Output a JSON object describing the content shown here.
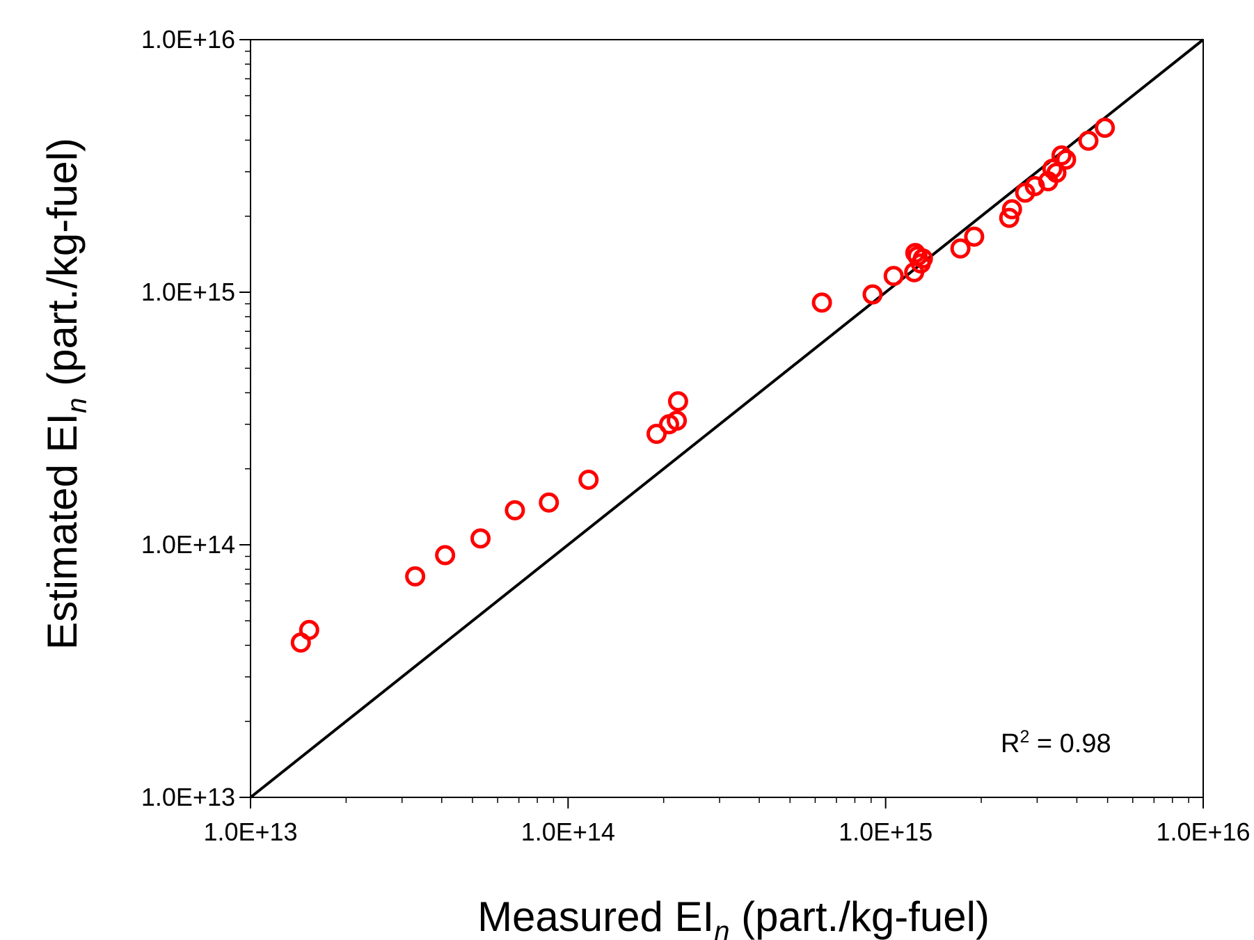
{
  "chart_data": {
    "type": "scatter",
    "xlabel": {
      "prefix": "Measured EI",
      "subscript": "n",
      "suffix": " (part./kg-fuel)"
    },
    "ylabel": {
      "prefix": "Estimated EI",
      "subscript": "n",
      "suffix": " (part./kg-fuel)"
    },
    "x_scale": "log",
    "y_scale": "log",
    "xlim": [
      10000000000000.0,
      1e+16
    ],
    "ylim": [
      10000000000000.0,
      1e+16
    ],
    "x_ticks": [
      10000000000000.0,
      100000000000000.0,
      1000000000000000.0,
      1e+16
    ],
    "y_ticks": [
      10000000000000.0,
      100000000000000.0,
      1000000000000000.0,
      1e+16
    ],
    "x_tick_labels": [
      "1.0E+13",
      "1.0E+14",
      "1.0E+15",
      "1.0E+16"
    ],
    "y_tick_labels": [
      "1.0E+13",
      "1.0E+14",
      "1.0E+15",
      "1.0E+16"
    ],
    "grid": false,
    "legend": "none",
    "marker_color": "#ff0000",
    "line_color": "#000000",
    "reference_line": {
      "type": "1:1",
      "from": [
        10000000000000.0,
        10000000000000.0
      ],
      "to": [
        1e+16,
        1e+16
      ]
    },
    "annotation": {
      "base": "R",
      "sup": "2",
      "rest": " = 0.98"
    },
    "points": [
      {
        "x": 14400000000000.0,
        "y": 41000000000000.0
      },
      {
        "x": 15300000000000.0,
        "y": 46000000000000.0
      },
      {
        "x": 33000000000000.0,
        "y": 75000000000000.0
      },
      {
        "x": 41000000000000.0,
        "y": 91000000000000.0
      },
      {
        "x": 53000000000000.0,
        "y": 106000000000000.0
      },
      {
        "x": 68000000000000.0,
        "y": 137000000000000.0
      },
      {
        "x": 87000000000000.0,
        "y": 147000000000000.0
      },
      {
        "x": 116000000000000.0,
        "y": 181000000000000.0
      },
      {
        "x": 190000000000000.0,
        "y": 275000000000000.0
      },
      {
        "x": 208000000000000.0,
        "y": 300000000000000.0
      },
      {
        "x": 220000000000000.0,
        "y": 310000000000000.0
      },
      {
        "x": 222000000000000.0,
        "y": 370000000000000.0
      },
      {
        "x": 630000000000000.0,
        "y": 910000000000000.0
      },
      {
        "x": 910000000000000.0,
        "y": 980000000000000.0
      },
      {
        "x": 1060000000000000.0,
        "y": 1160000000000000.0
      },
      {
        "x": 1230000000000000.0,
        "y": 1200000000000000.0
      },
      {
        "x": 1240000000000000.0,
        "y": 1430000000000000.0
      },
      {
        "x": 1260000000000000.0,
        "y": 1390000000000000.0
      },
      {
        "x": 1290000000000000.0,
        "y": 1300000000000000.0
      },
      {
        "x": 1310000000000000.0,
        "y": 1360000000000000.0
      },
      {
        "x": 1720000000000000.0,
        "y": 1490000000000000.0
      },
      {
        "x": 1900000000000000.0,
        "y": 1660000000000000.0
      },
      {
        "x": 2450000000000000.0,
        "y": 1970000000000000.0
      },
      {
        "x": 2500000000000000.0,
        "y": 2130000000000000.0
      },
      {
        "x": 2750000000000000.0,
        "y": 2480000000000000.0
      },
      {
        "x": 2950000000000000.0,
        "y": 2630000000000000.0
      },
      {
        "x": 3250000000000000.0,
        "y": 2750000000000000.0
      },
      {
        "x": 3350000000000000.0,
        "y": 3080000000000000.0
      },
      {
        "x": 3450000000000000.0,
        "y": 2970000000000000.0
      },
      {
        "x": 3580000000000000.0,
        "y": 3480000000000000.0
      },
      {
        "x": 3700000000000000.0,
        "y": 3350000000000000.0
      },
      {
        "x": 4350000000000000.0,
        "y": 3980000000000000.0
      },
      {
        "x": 4900000000000000.0,
        "y": 4480000000000000.0
      }
    ]
  }
}
